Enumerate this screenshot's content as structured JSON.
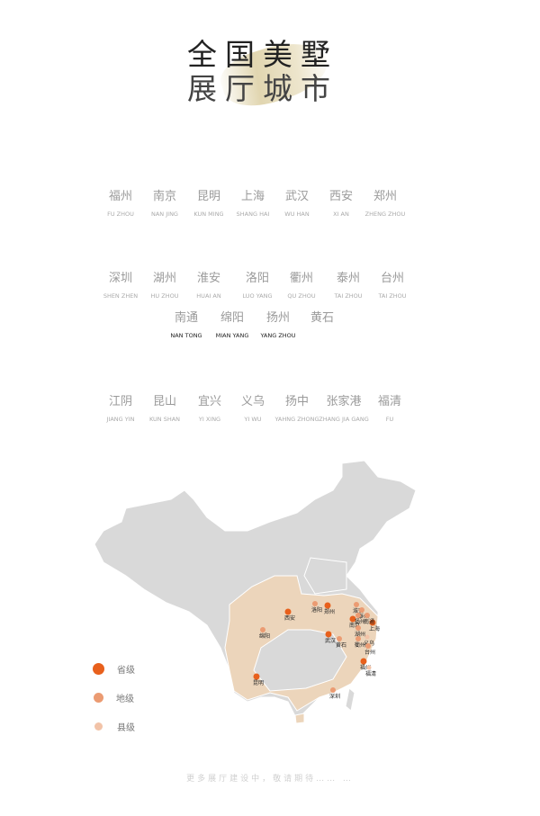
{
  "header": {
    "line1": "全国美墅",
    "line2": "展厅城市"
  },
  "rows": [
    [
      {
        "cn": "福州",
        "en": "FU ZHOU"
      },
      {
        "cn": "南京",
        "en": "NAN JING"
      },
      {
        "cn": "昆明",
        "en": "KUN MING"
      },
      {
        "cn": "上海",
        "en": "SHANG HAI"
      },
      {
        "cn": "武汉",
        "en": "WU HAN"
      },
      {
        "cn": "西安",
        "en": "XI AN"
      },
      {
        "cn": "郑州",
        "en": "ZHENG ZHOU"
      }
    ],
    [
      {
        "cn": "深圳",
        "en": "SHEN ZHEN"
      },
      {
        "cn": "湖州",
        "en": "HU ZHOU"
      },
      {
        "cn": "淮安",
        "en": "HUAI AN"
      },
      {
        "cn": "洛阳",
        "en": "LUO YANG"
      },
      {
        "cn": "衢州",
        "en": "QU ZHOU"
      },
      {
        "cn": "泰州",
        "en": "TAI ZHOU"
      },
      {
        "cn": "台州",
        "en": "TAI ZHOU"
      }
    ],
    [
      {
        "cn": "南通",
        "en": "NAN TONG"
      },
      {
        "cn": "绵阳",
        "en": "MIAN YANG"
      },
      {
        "cn": "扬州",
        "en": "YANG ZHOU"
      },
      {
        "cn": "黄石",
        "en": ""
      }
    ],
    [
      {
        "cn": "江阴",
        "en": "JIANG YIN"
      },
      {
        "cn": "昆山",
        "en": "KUN SHAN"
      },
      {
        "cn": "宜兴",
        "en": "YI XING"
      },
      {
        "cn": "义乌",
        "en": "YI WU"
      },
      {
        "cn": "扬中",
        "en": "YAHNG ZHONG"
      },
      {
        "cn": "张家港",
        "en": "ZHANG JIA GANG"
      },
      {
        "cn": "福清",
        "en": "FU"
      }
    ]
  ],
  "map": {
    "colors": {
      "base": "#d9d9d9",
      "highlight": "#ecd5bb",
      "province": "#e8601c",
      "prefecture": "#eb9b72",
      "county": "#f2c3a8"
    },
    "labels": [
      "西安",
      "洛阳",
      "郑州",
      "绵阳",
      "武汉",
      "黄石",
      "昆明",
      "深圳",
      "福州",
      "上海",
      "淮安",
      "泰州",
      "南京",
      "扬州",
      "南通",
      "湖州",
      "衢州",
      "义乌",
      "台州",
      "福清"
    ]
  },
  "legend": [
    {
      "label": "省级",
      "color": "#e8601c"
    },
    {
      "label": "地级",
      "color": "#eb9b72"
    },
    {
      "label": "县级",
      "color": "#f2c3a8"
    }
  ],
  "footer": "更多展厅建设中，敬请期待…… …"
}
